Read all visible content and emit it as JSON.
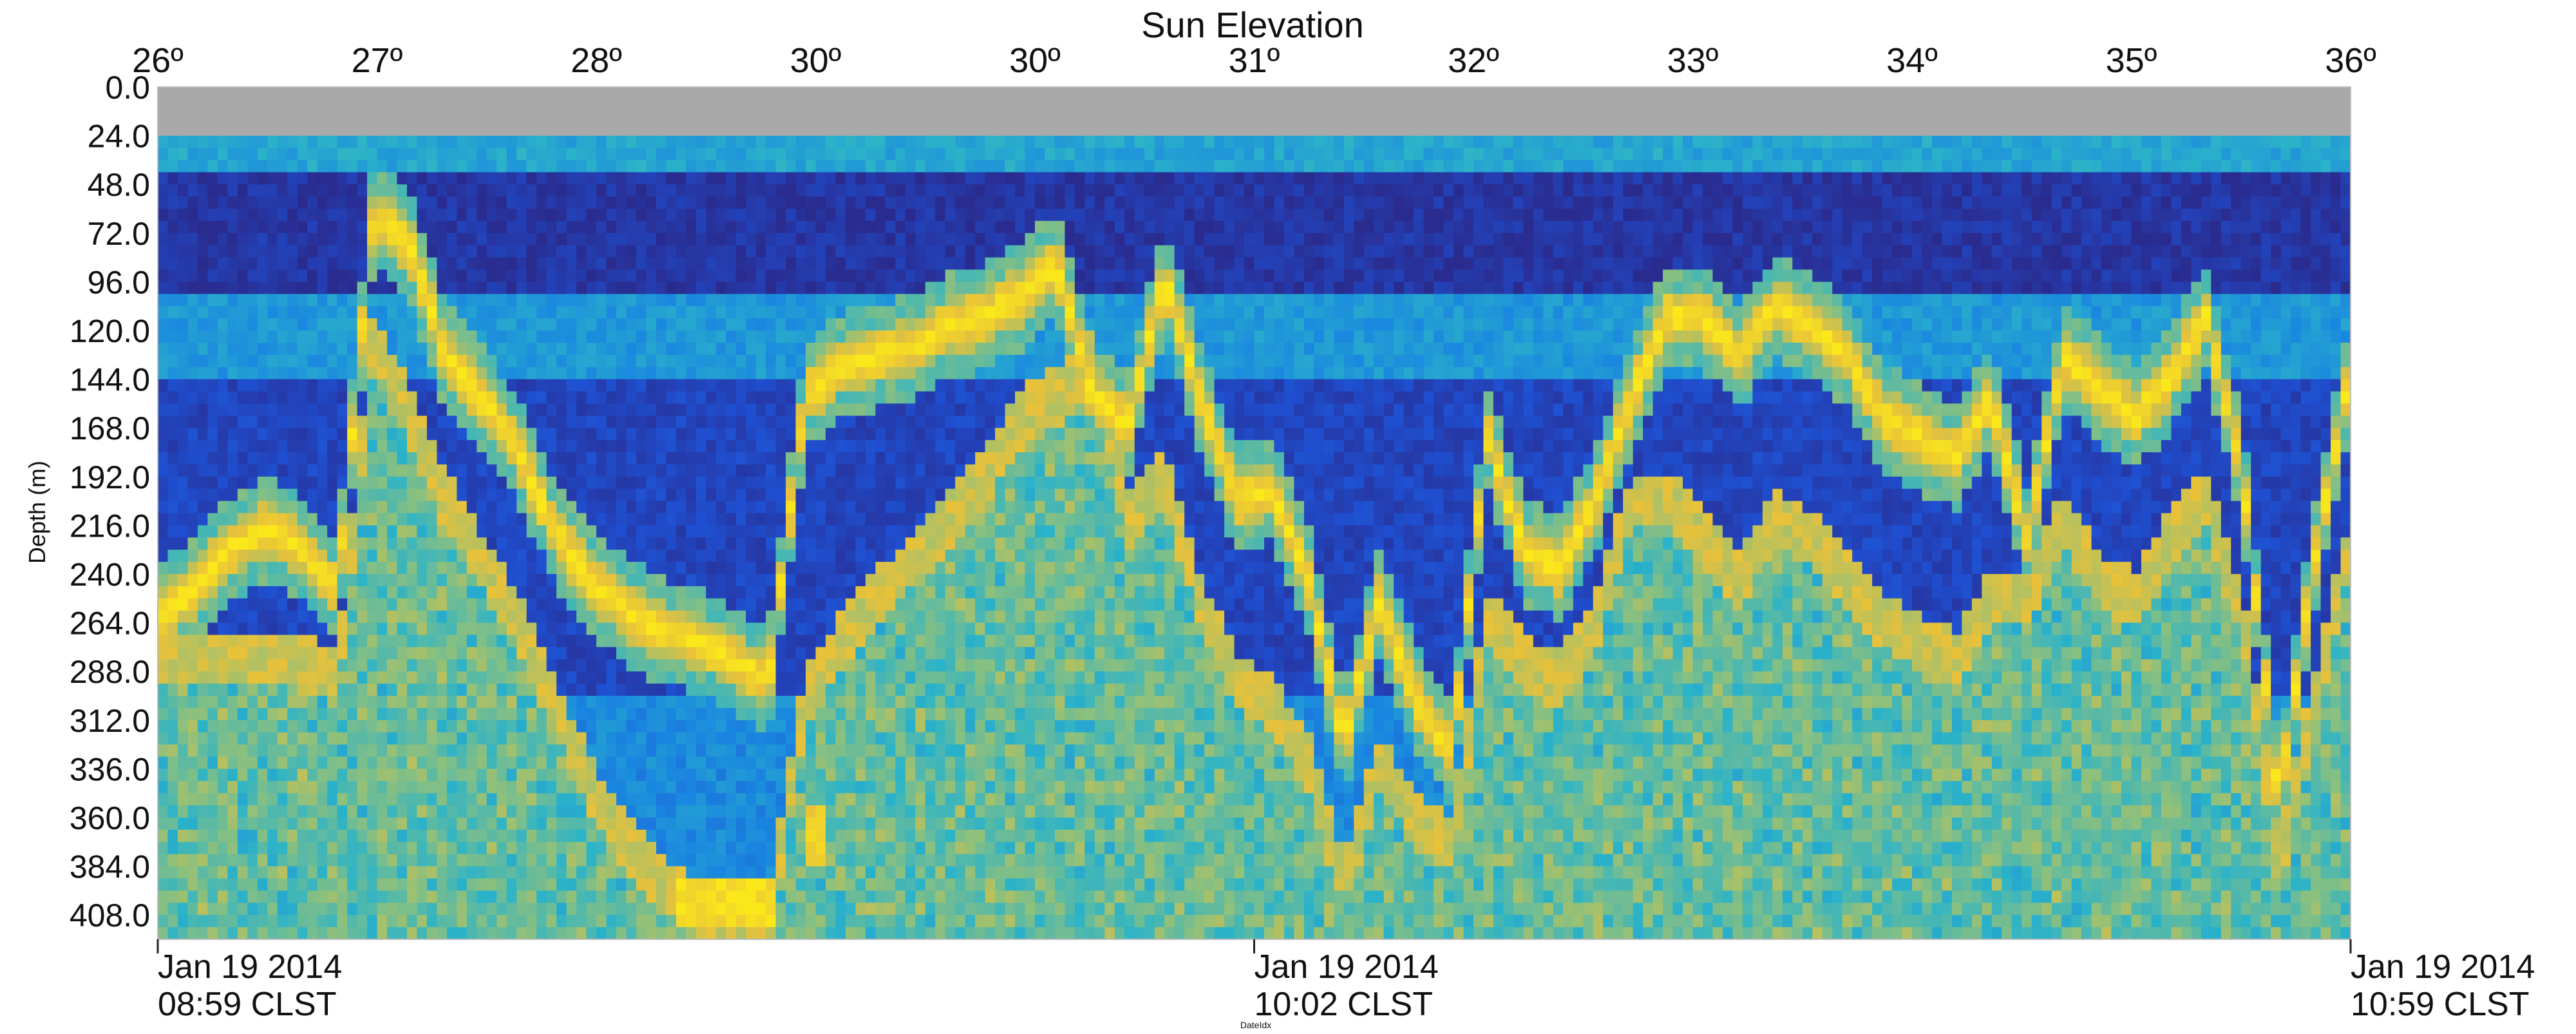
{
  "chart_data": {
    "type": "heatmap",
    "title": "Sun Elevation",
    "ylabel": "Depth (m)",
    "xlabel": "DateIdx",
    "top_axis": {
      "label": "Sun Elevation",
      "ticks": [
        "26º",
        "27º",
        "28º",
        "30º",
        "30º",
        "31º",
        "32º",
        "33º",
        "34º",
        "35º",
        "36º"
      ]
    },
    "y_axis": {
      "ticks": [
        "0.0",
        "24.0",
        "48.0",
        "72.0",
        "96.0",
        "120.0",
        "144.0",
        "168.0",
        "192.0",
        "216.0",
        "240.0",
        "264.0",
        "288.0",
        "312.0",
        "336.0",
        "360.0",
        "384.0",
        "408.0"
      ],
      "range": [
        0,
        420
      ],
      "inverted": true
    },
    "x_axis": {
      "ticks": [
        {
          "date": "Jan 19 2014",
          "time": "08:59 CLST"
        },
        {
          "date": "Jan 19 2014",
          "time": "10:02 CLST"
        },
        {
          "date": "Jan 19 2014",
          "time": "10:59 CLST"
        }
      ]
    },
    "no_data_band": {
      "depth_range": [
        0,
        24
      ],
      "color": "#a9a9a9"
    },
    "colormap": [
      "#2a2b8e",
      "#1f4fd0",
      "#1a86e0",
      "#2bb3c9",
      "#8cc07e",
      "#e8c13a",
      "#fbe81a"
    ],
    "layers": [
      {
        "name": "upper",
        "depth_profile": [
          260,
          245,
          225,
          215,
          225,
          245,
          60,
          75,
          130,
          150,
          175,
          215,
          240,
          255,
          265,
          270,
          280,
          290,
          150,
          135,
          130,
          125,
          115,
          110,
          100,
          85,
          150,
          165,
          90,
          150,
          200,
          195,
          240,
          320,
          250,
          300,
          325,
          170,
          225,
          235,
          200,
          150,
          110,
          110,
          130,
          105,
          115,
          130,
          160,
          170,
          180,
          150,
          220,
          130,
          145,
          160,
          140,
          110,
          190,
          350,
          230,
          135
        ]
      },
      {
        "name": "lower",
        "depth_profile": [
          280,
          280,
          280,
          280,
          280,
          290,
          120,
          160,
          200,
          230,
          260,
          300,
          340,
          370,
          390,
          400,
          410,
          410,
          300,
          270,
          250,
          230,
          210,
          190,
          160,
          150,
          130,
          210,
          190,
          250,
          290,
          300,
          330,
          390,
          330,
          360,
          370,
          260,
          280,
          290,
          260,
          200,
          200,
          220,
          240,
          210,
          220,
          240,
          260,
          270,
          280,
          250,
          250,
          210,
          240,
          250,
          220,
          200,
          260,
          380,
          300,
          220
        ]
      }
    ],
    "background_bands": [
      {
        "depth_range": [
          24,
          40
        ],
        "level": 0.45
      },
      {
        "depth_range": [
          40,
          100
        ],
        "level": 0.05
      },
      {
        "depth_range": [
          100,
          140
        ],
        "level": 0.4
      },
      {
        "depth_range": [
          140,
          300
        ],
        "level": 0.12
      },
      {
        "depth_range": [
          300,
          420
        ],
        "level": 0.35
      }
    ],
    "special_features": [
      {
        "depth_range": [
          385,
          410
        ],
        "x_frac": [
          0.235,
          0.28
        ],
        "level": 0.95
      },
      {
        "depth_range": [
          350,
          380
        ],
        "x_frac": [
          0.295,
          0.305
        ],
        "level": 0.9
      }
    ],
    "grid": false
  }
}
